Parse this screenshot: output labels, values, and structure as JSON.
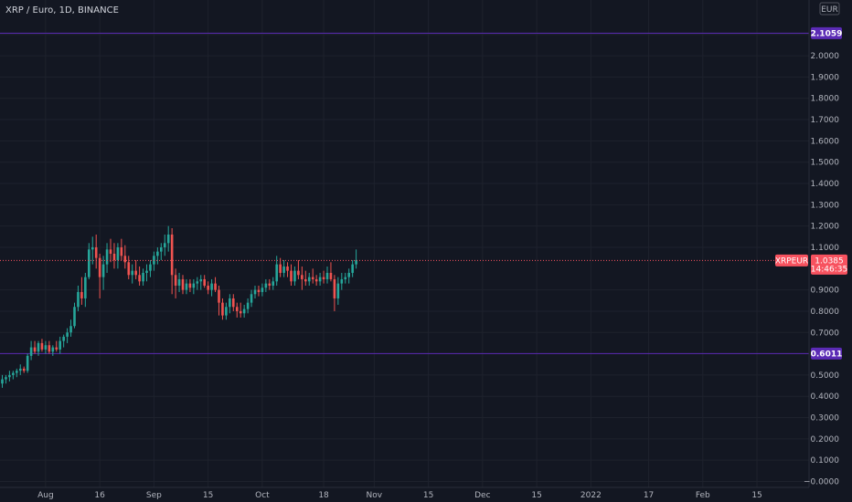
{
  "header": {
    "symbol_title": "XRP / Euro, 1D, BINANCE",
    "currency": "EUR"
  },
  "price_axis": {
    "ticks": [
      "2.1000",
      "2.0000",
      "1.9000",
      "1.8000",
      "1.7000",
      "1.6000",
      "1.5000",
      "1.4000",
      "1.3000",
      "1.2000",
      "1.1000",
      "0.9000",
      "0.8000",
      "0.7000",
      "0.5000",
      "0.4000",
      "0.3000",
      "0.2000",
      "0.1000",
      "−0.0000"
    ],
    "tick_values": [
      2.1,
      2.0,
      1.9,
      1.8,
      1.7,
      1.6,
      1.5,
      1.4,
      1.3,
      1.2,
      1.1,
      0.9,
      0.8,
      0.7,
      0.5,
      0.4,
      0.3,
      0.2,
      0.1,
      0.0
    ]
  },
  "time_axis": {
    "labels": [
      "Aug",
      "16",
      "Sep",
      "15",
      "Oct",
      "18",
      "Nov",
      "15",
      "Dec",
      "15",
      "2022",
      "17",
      "Feb",
      "15"
    ],
    "label_days": [
      12,
      27,
      42,
      57,
      72,
      89,
      103,
      118,
      133,
      148,
      163,
      179,
      194,
      209
    ]
  },
  "levels": [
    {
      "label": "2.1059",
      "value": 2.1059,
      "color": "#5b2bb5"
    },
    {
      "label": "0.6011",
      "value": 0.6011,
      "color": "#5b2bb5"
    }
  ],
  "last_price": {
    "symbol": "XRPEUR",
    "price": "1.0385",
    "countdown": "14:46:35",
    "value": 1.0385,
    "color": "#f7525f"
  },
  "colors": {
    "up": "#26a69a",
    "down": "#ef5350",
    "background": "#131722",
    "grid": "#1e222d"
  },
  "chart_data": {
    "type": "candlestick",
    "title": "XRP / Euro, 1D, BINANCE",
    "ylim": [
      -0.02,
      2.22
    ],
    "x_unit": "days since 2021-07-21",
    "candles": [
      [
        0.46,
        0.5,
        0.44,
        0.48
      ],
      [
        0.48,
        0.5,
        0.46,
        0.49
      ],
      [
        0.49,
        0.52,
        0.47,
        0.5
      ],
      [
        0.5,
        0.52,
        0.48,
        0.51
      ],
      [
        0.51,
        0.53,
        0.49,
        0.52
      ],
      [
        0.52,
        0.55,
        0.5,
        0.53
      ],
      [
        0.53,
        0.54,
        0.51,
        0.52
      ],
      [
        0.52,
        0.6,
        0.51,
        0.59
      ],
      [
        0.59,
        0.66,
        0.57,
        0.63
      ],
      [
        0.63,
        0.66,
        0.6,
        0.61
      ],
      [
        0.61,
        0.66,
        0.59,
        0.65
      ],
      [
        0.65,
        0.67,
        0.61,
        0.62
      ],
      [
        0.62,
        0.66,
        0.6,
        0.64
      ],
      [
        0.64,
        0.66,
        0.6,
        0.61
      ],
      [
        0.61,
        0.64,
        0.59,
        0.63
      ],
      [
        0.63,
        0.66,
        0.61,
        0.62
      ],
      [
        0.62,
        0.68,
        0.6,
        0.66
      ],
      [
        0.66,
        0.69,
        0.63,
        0.68
      ],
      [
        0.68,
        0.72,
        0.65,
        0.7
      ],
      [
        0.7,
        0.76,
        0.68,
        0.73
      ],
      [
        0.73,
        0.84,
        0.72,
        0.82
      ],
      [
        0.82,
        0.92,
        0.8,
        0.89
      ],
      [
        0.89,
        0.96,
        0.83,
        0.86
      ],
      [
        0.86,
        0.98,
        0.82,
        0.96
      ],
      [
        0.96,
        1.12,
        0.95,
        1.09
      ],
      [
        1.09,
        1.15,
        1.02,
        1.1
      ],
      [
        1.1,
        1.16,
        1.0,
        1.05
      ],
      [
        1.05,
        1.07,
        0.86,
        0.96
      ],
      [
        0.96,
        1.06,
        0.9,
        1.02
      ],
      [
        1.02,
        1.12,
        0.98,
        1.09
      ],
      [
        1.09,
        1.14,
        1.03,
        1.07
      ],
      [
        1.07,
        1.12,
        1.0,
        1.04
      ],
      [
        1.04,
        1.12,
        1.0,
        1.1
      ],
      [
        1.1,
        1.14,
        1.04,
        1.06
      ],
      [
        1.06,
        1.11,
        1.0,
        1.03
      ],
      [
        1.03,
        1.06,
        0.95,
        0.97
      ],
      [
        0.97,
        1.02,
        0.93,
        0.99
      ],
      [
        0.99,
        1.04,
        0.95,
        0.97
      ],
      [
        0.97,
        1.01,
        0.92,
        0.94
      ],
      [
        0.94,
        1.0,
        0.92,
        0.98
      ],
      [
        0.98,
        1.02,
        0.94,
        0.99
      ],
      [
        0.99,
        1.04,
        0.96,
        1.02
      ],
      [
        1.02,
        1.08,
        0.99,
        1.06
      ],
      [
        1.06,
        1.1,
        1.02,
        1.08
      ],
      [
        1.08,
        1.12,
        1.04,
        1.1
      ],
      [
        1.1,
        1.16,
        1.06,
        1.12
      ],
      [
        1.12,
        1.2,
        1.08,
        1.16
      ],
      [
        1.16,
        1.19,
        0.88,
        0.97
      ],
      [
        0.97,
        1.0,
        0.86,
        0.92
      ],
      [
        0.92,
        0.98,
        0.89,
        0.95
      ],
      [
        0.95,
        0.97,
        0.88,
        0.9
      ],
      [
        0.9,
        0.95,
        0.88,
        0.93
      ],
      [
        0.93,
        0.95,
        0.89,
        0.91
      ],
      [
        0.91,
        0.95,
        0.88,
        0.93
      ],
      [
        0.93,
        0.96,
        0.9,
        0.94
      ],
      [
        0.94,
        0.97,
        0.9,
        0.95
      ],
      [
        0.95,
        0.97,
        0.91,
        0.92
      ],
      [
        0.92,
        0.94,
        0.88,
        0.9
      ],
      [
        0.9,
        0.95,
        0.87,
        0.93
      ],
      [
        0.93,
        0.96,
        0.89,
        0.9
      ],
      [
        0.9,
        0.92,
        0.78,
        0.84
      ],
      [
        0.84,
        0.86,
        0.76,
        0.78
      ],
      [
        0.78,
        0.84,
        0.76,
        0.82
      ],
      [
        0.82,
        0.88,
        0.79,
        0.86
      ],
      [
        0.86,
        0.88,
        0.8,
        0.82
      ],
      [
        0.82,
        0.84,
        0.77,
        0.8
      ],
      [
        0.8,
        0.84,
        0.77,
        0.79
      ],
      [
        0.79,
        0.83,
        0.77,
        0.81
      ],
      [
        0.81,
        0.86,
        0.79,
        0.84
      ],
      [
        0.84,
        0.9,
        0.82,
        0.88
      ],
      [
        0.88,
        0.92,
        0.86,
        0.9
      ],
      [
        0.9,
        0.92,
        0.87,
        0.89
      ],
      [
        0.89,
        0.93,
        0.87,
        0.91
      ],
      [
        0.91,
        0.95,
        0.89,
        0.93
      ],
      [
        0.93,
        0.95,
        0.9,
        0.92
      ],
      [
        0.92,
        0.96,
        0.9,
        0.94
      ],
      [
        0.94,
        1.06,
        0.92,
        1.02
      ],
      [
        1.02,
        1.05,
        0.96,
        0.98
      ],
      [
        0.98,
        1.04,
        0.96,
        1.01
      ],
      [
        1.01,
        1.03,
        0.96,
        0.99
      ],
      [
        0.99,
        1.02,
        0.92,
        0.94
      ],
      [
        0.94,
        1.01,
        0.92,
        0.99
      ],
      [
        0.99,
        1.04,
        0.95,
        0.97
      ],
      [
        0.97,
        1.01,
        0.9,
        0.95
      ],
      [
        0.95,
        0.99,
        0.92,
        0.94
      ],
      [
        0.94,
        0.98,
        0.92,
        0.96
      ],
      [
        0.96,
        1.0,
        0.93,
        0.95
      ],
      [
        0.95,
        0.97,
        0.92,
        0.94
      ],
      [
        0.94,
        0.98,
        0.92,
        0.96
      ],
      [
        0.96,
        0.99,
        0.93,
        0.95
      ],
      [
        0.95,
        1.01,
        0.93,
        0.98
      ],
      [
        0.98,
        1.03,
        0.94,
        0.95
      ],
      [
        0.95,
        0.97,
        0.8,
        0.86
      ],
      [
        0.86,
        0.96,
        0.83,
        0.93
      ],
      [
        0.93,
        0.98,
        0.9,
        0.95
      ],
      [
        0.95,
        0.98,
        0.93,
        0.96
      ],
      [
        0.96,
        1.0,
        0.93,
        0.98
      ],
      [
        0.98,
        1.04,
        0.96,
        1.02
      ],
      [
        1.02,
        1.09,
        1.0,
        1.04
      ]
    ]
  }
}
